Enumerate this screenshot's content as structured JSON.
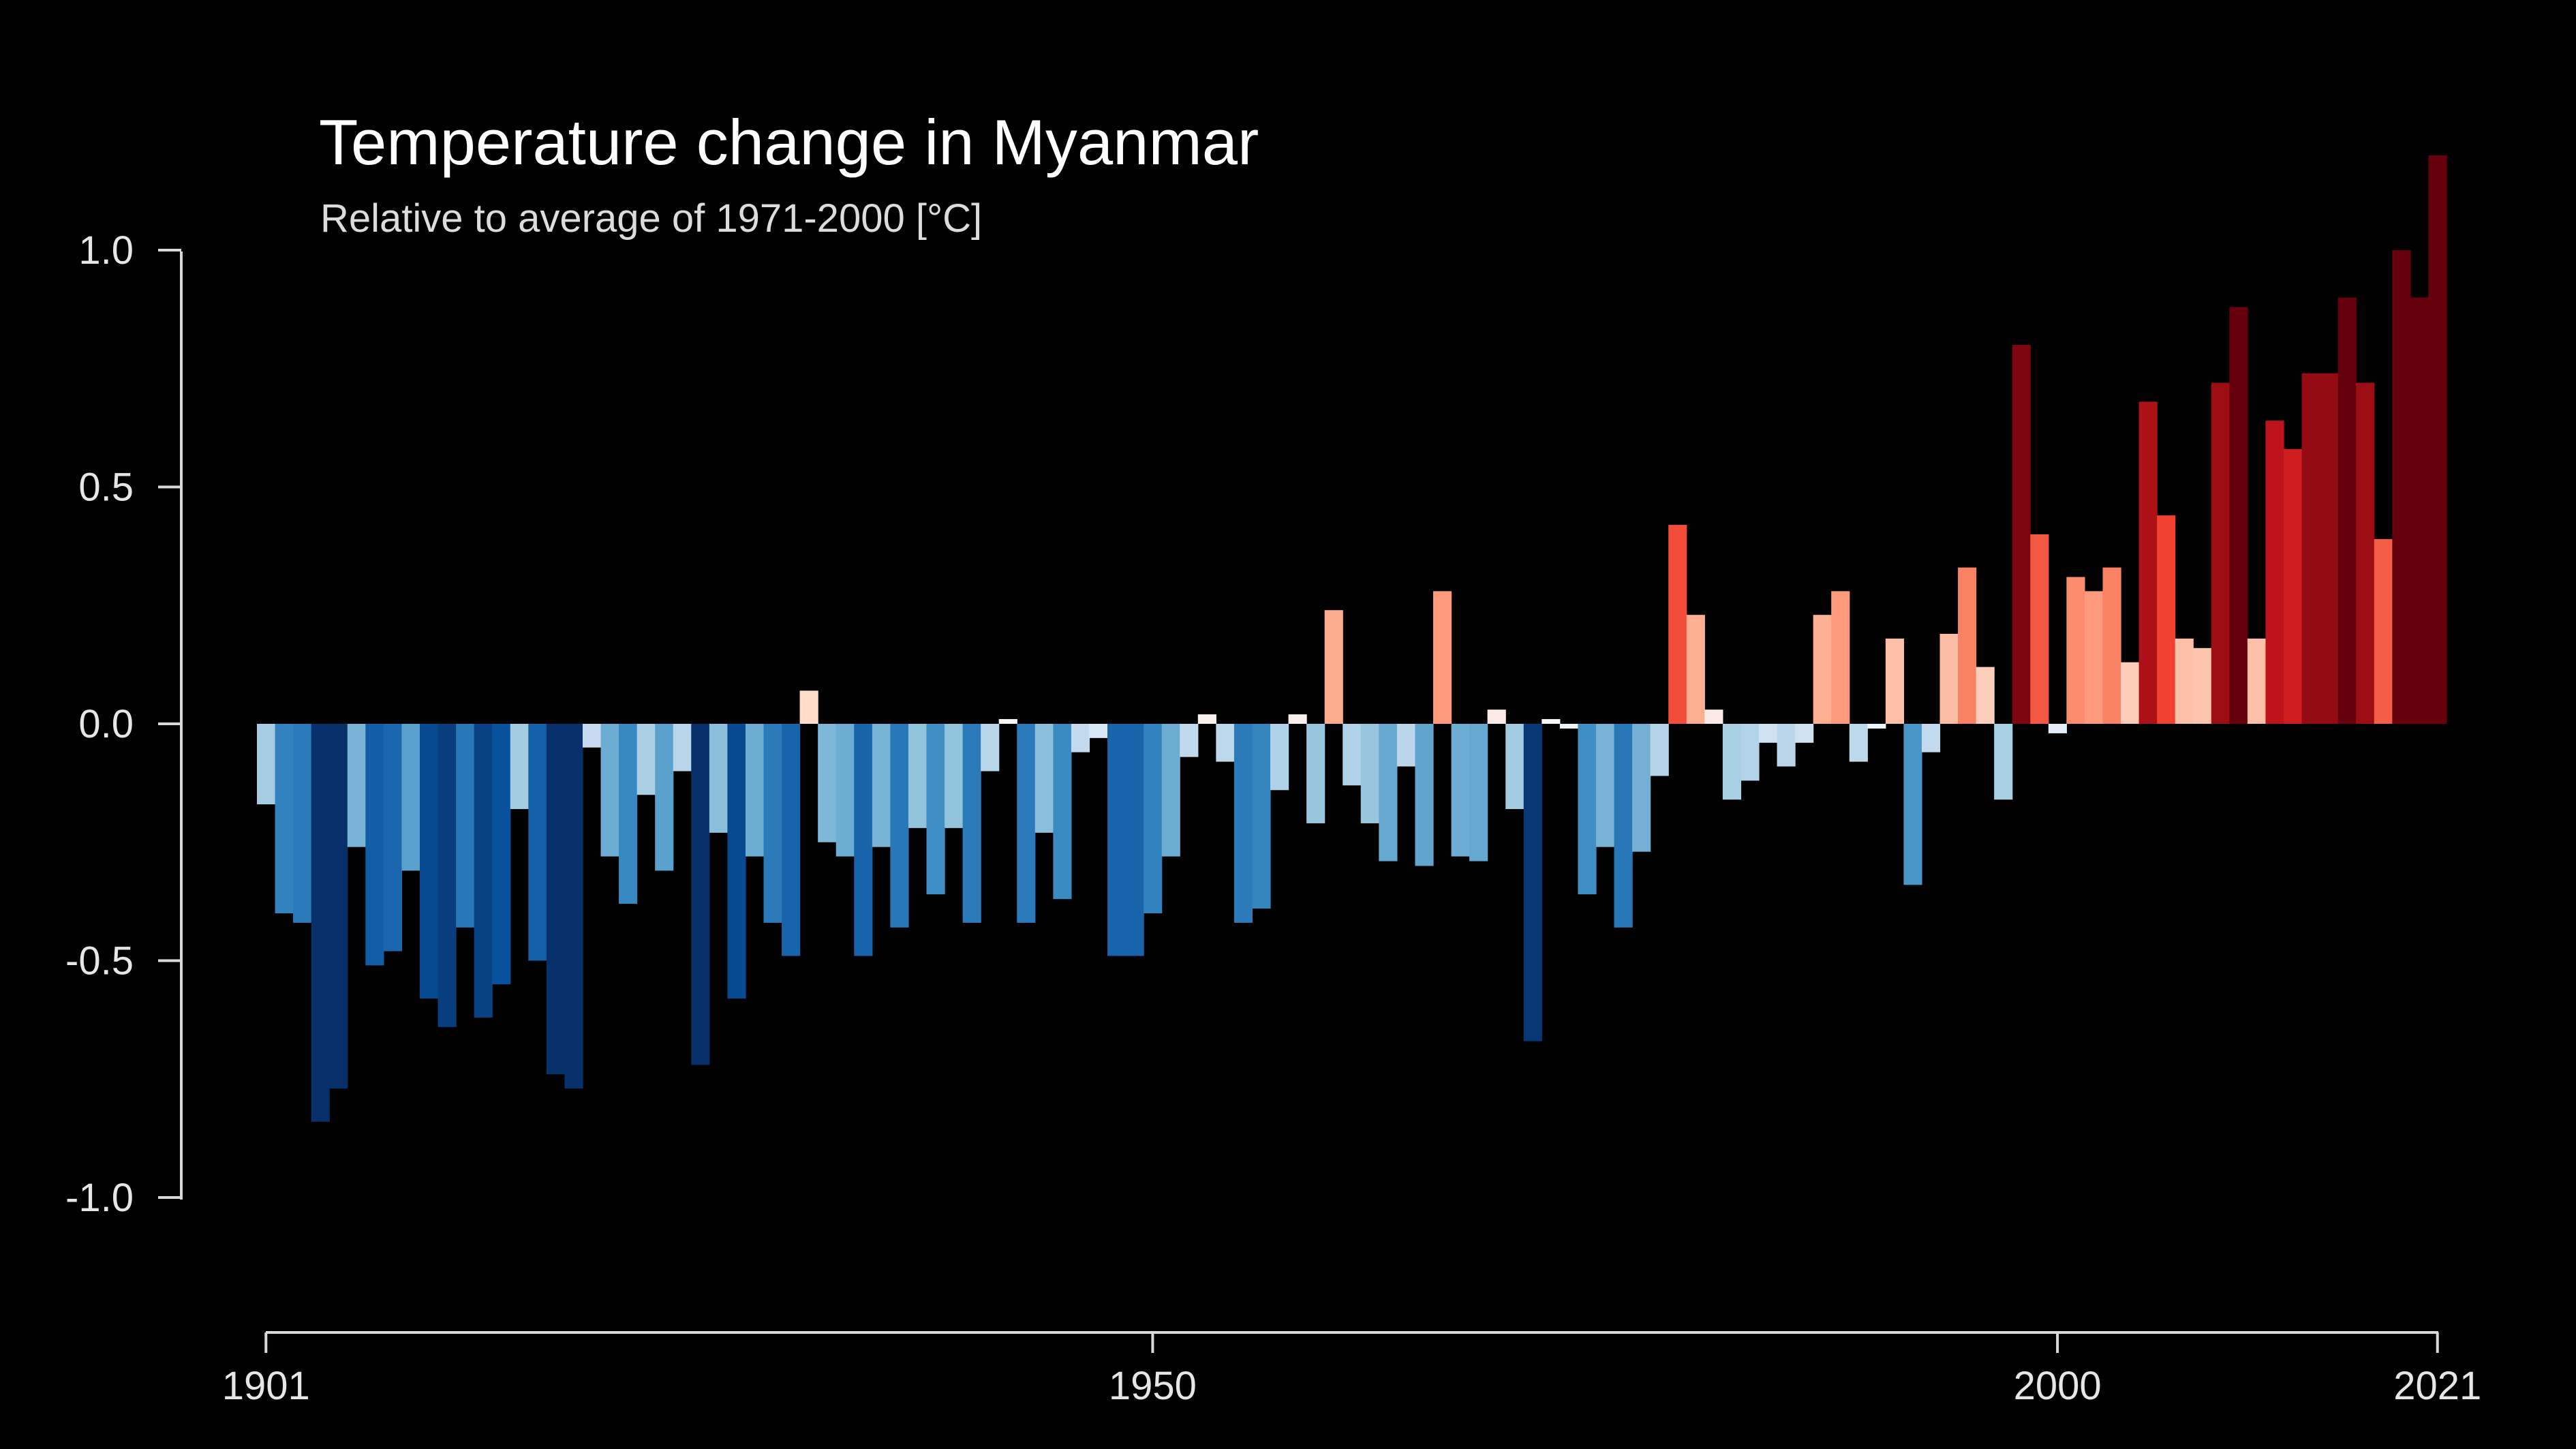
{
  "chart_data": {
    "type": "bar",
    "title": "Temperature change in Myanmar",
    "subtitle": "Relative to average of 1971-2000  [°C]",
    "x_start": 1901,
    "x_end": 2021,
    "ylim": [
      -1.2,
      1.2
    ],
    "y_ticks": [
      {
        "value": 1.0,
        "label": "1.0"
      },
      {
        "value": 0.5,
        "label": "0.5"
      },
      {
        "value": 0.0,
        "label": "0.0"
      },
      {
        "value": -0.5,
        "label": "-0.5"
      },
      {
        "value": -1.0,
        "label": "-1.0"
      }
    ],
    "x_ticks": [
      {
        "value": 1901,
        "label": "1901"
      },
      {
        "value": 1950,
        "label": "1950"
      },
      {
        "value": 2000,
        "label": "2000"
      },
      {
        "value": 2021,
        "label": "2021"
      }
    ],
    "grid": false,
    "legend": "none",
    "color_scale": {
      "stops": [
        {
          "value": -0.7,
          "color": "#08306b"
        },
        {
          "value": -0.55,
          "color": "#08519c"
        },
        {
          "value": -0.45,
          "color": "#2171b5"
        },
        {
          "value": -0.35,
          "color": "#4292c6"
        },
        {
          "value": -0.2,
          "color": "#9ecae1"
        },
        {
          "value": -0.05,
          "color": "#c6dbef"
        },
        {
          "value": 0.0,
          "color": "#f7fbff"
        },
        {
          "value": 0.05,
          "color": "#fee0d2"
        },
        {
          "value": 0.2,
          "color": "#fcbba1"
        },
        {
          "value": 0.3,
          "color": "#fc9272"
        },
        {
          "value": 0.45,
          "color": "#ef3b2c"
        },
        {
          "value": 0.6,
          "color": "#cb181d"
        },
        {
          "value": 0.7,
          "color": "#a50f15"
        },
        {
          "value": 0.85,
          "color": "#67000d"
        }
      ]
    },
    "values": [
      -0.17,
      -0.4,
      -0.42,
      -0.84,
      -0.77,
      -0.26,
      -0.51,
      -0.48,
      -0.31,
      -0.58,
      -0.64,
      -0.43,
      -0.62,
      -0.55,
      -0.18,
      -0.5,
      -0.74,
      -0.77,
      -0.05,
      -0.28,
      -0.38,
      -0.15,
      -0.31,
      -0.1,
      -0.72,
      -0.23,
      -0.58,
      -0.28,
      -0.42,
      -0.49,
      0.07,
      -0.25,
      -0.28,
      -0.49,
      -0.26,
      -0.43,
      -0.22,
      -0.36,
      -0.22,
      -0.42,
      -0.1,
      0.01,
      -0.42,
      -0.23,
      -0.37,
      -0.06,
      -0.03,
      -0.49,
      -0.49,
      -0.4,
      -0.28,
      -0.07,
      0.02,
      -0.08,
      -0.42,
      -0.39,
      -0.14,
      0.02,
      -0.21,
      0.24,
      -0.13,
      -0.21,
      -0.29,
      -0.09,
      -0.3,
      0.28,
      -0.28,
      -0.29,
      0.03,
      -0.18,
      -0.67,
      0.01,
      -0.01,
      -0.36,
      -0.26,
      -0.43,
      -0.27,
      -0.11,
      0.42,
      0.23,
      0.03,
      -0.16,
      -0.12,
      -0.04,
      -0.09,
      -0.04,
      0.23,
      0.28,
      -0.08,
      -0.01,
      0.18,
      -0.34,
      -0.06,
      0.19,
      0.33,
      0.12,
      -0.16,
      0.8,
      0.4,
      -0.02,
      0.31,
      0.28,
      0.33,
      0.13,
      0.68,
      0.44,
      0.18,
      0.16,
      0.72,
      0.88,
      0.18,
      0.64,
      0.58,
      0.74,
      0.74,
      0.9,
      0.72,
      0.39,
      1.0,
      0.9,
      1.2
    ]
  }
}
